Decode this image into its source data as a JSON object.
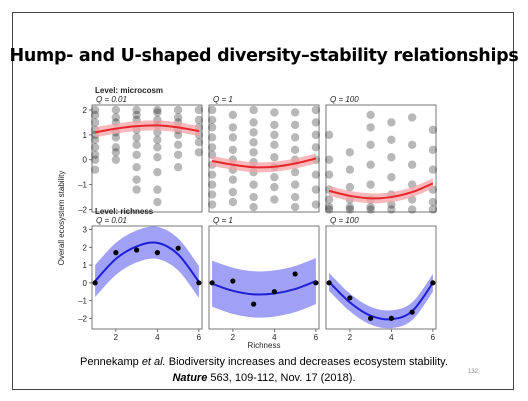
{
  "slide": {
    "title": "Hump- and U-shaped diversity–stability relationships",
    "citation_line1_pre": "Pennekamp ",
    "citation_line1_em": "et al.",
    "citation_line1_post": " Biodiversity increases and decreases ecosystem stability.",
    "citation_line2_journal": "Nature",
    "citation_line2_post": " 563, 109-112, Nov. 17 (2018).",
    "slide_number": "132"
  },
  "chart_data": {
    "type": "scatter",
    "ylabel": "Overall ecosystem stability",
    "xlabel": "Richness",
    "x_ticks": [
      "2",
      "4",
      "6"
    ],
    "colors": {
      "microcosm_fit": "#e8262b",
      "microcosm_band": "#f4a3a5",
      "richness_fit": "#1f1fd8",
      "richness_band": "#8f8ff2",
      "points": "#000000",
      "panel_bg": "#ffffff"
    },
    "rows": [
      {
        "level_label": "Level: microcosm",
        "y_ticks": [
          "2",
          "1",
          "0",
          "–1",
          "–2"
        ],
        "ylim": [
          -2.1,
          2.2
        ],
        "panels": [
          {
            "label": "Q = 0.01",
            "fit": [
              [
                1,
                1.1
              ],
              [
                2,
                1.25
              ],
              [
                3,
                1.35
              ],
              [
                4,
                1.38
              ],
              [
                5,
                1.3
              ],
              [
                6,
                1.15
              ]
            ],
            "band": 0.2,
            "points": [
              [
                1,
                2
              ],
              [
                1,
                1.8
              ],
              [
                1,
                1.5
              ],
              [
                1,
                1.2
              ],
              [
                1,
                1
              ],
              [
                1,
                0.8
              ],
              [
                1,
                0.5
              ],
              [
                1,
                0.2
              ],
              [
                1,
                0
              ],
              [
                1,
                -0.4
              ],
              [
                2,
                2
              ],
              [
                2,
                1.7
              ],
              [
                2,
                1.5
              ],
              [
                2,
                1.1
              ],
              [
                2,
                0.9
              ],
              [
                2,
                0.5
              ],
              [
                2,
                0.3
              ],
              [
                2,
                0
              ],
              [
                3,
                2
              ],
              [
                3,
                1.8
              ],
              [
                3,
                1.6
              ],
              [
                3,
                1.2
              ],
              [
                3,
                0.9
              ],
              [
                3,
                0.6
              ],
              [
                3,
                0.2
              ],
              [
                3,
                -0.3
              ],
              [
                3,
                -0.8
              ],
              [
                3,
                -1.2
              ],
              [
                4,
                2
              ],
              [
                4,
                1.9
              ],
              [
                4,
                1.6
              ],
              [
                4,
                1.4
              ],
              [
                4,
                1.1
              ],
              [
                4,
                0.8
              ],
              [
                4,
                0.5
              ],
              [
                4,
                0.1
              ],
              [
                4,
                -0.5
              ],
              [
                4,
                -1.2
              ],
              [
                4,
                -1.7
              ],
              [
                5,
                2
              ],
              [
                5,
                1.7
              ],
              [
                5,
                1.5
              ],
              [
                5,
                1.2
              ],
              [
                5,
                1
              ],
              [
                5,
                0.6
              ],
              [
                5,
                0.2
              ],
              [
                5,
                -0.3
              ],
              [
                6,
                2
              ],
              [
                6,
                1.6
              ],
              [
                6,
                1.3
              ],
              [
                6,
                1
              ],
              [
                6,
                0.7
              ],
              [
                6,
                0.3
              ]
            ]
          },
          {
            "label": "Q = 1",
            "fit": [
              [
                1,
                -0.05
              ],
              [
                2,
                -0.2
              ],
              [
                3,
                -0.3
              ],
              [
                4,
                -0.28
              ],
              [
                5,
                -0.15
              ],
              [
                6,
                0.05
              ]
            ],
            "band": 0.2,
            "points": [
              [
                1,
                2
              ],
              [
                1,
                1.6
              ],
              [
                1,
                1.3
              ],
              [
                1,
                0.9
              ],
              [
                1,
                0.5
              ],
              [
                1,
                0.2
              ],
              [
                1,
                -0.2
              ],
              [
                1,
                -0.6
              ],
              [
                1,
                -1
              ],
              [
                1,
                -1.4
              ],
              [
                1,
                -1.8
              ],
              [
                2,
                1.8
              ],
              [
                2,
                1.3
              ],
              [
                2,
                0.9
              ],
              [
                2,
                0.4
              ],
              [
                2,
                0
              ],
              [
                2,
                -0.4
              ],
              [
                2,
                -0.8
              ],
              [
                2,
                -1.3
              ],
              [
                2,
                -1.7
              ],
              [
                3,
                2
              ],
              [
                3,
                1.5
              ],
              [
                3,
                1.1
              ],
              [
                3,
                0.7
              ],
              [
                3,
                0.3
              ],
              [
                3,
                -0.1
              ],
              [
                3,
                -0.5
              ],
              [
                3,
                -1
              ],
              [
                3,
                -1.5
              ],
              [
                3,
                -1.9
              ],
              [
                4,
                1.9
              ],
              [
                4,
                1.4
              ],
              [
                4,
                1
              ],
              [
                4,
                0.6
              ],
              [
                4,
                0.1
              ],
              [
                4,
                -0.3
              ],
              [
                4,
                -0.7
              ],
              [
                4,
                -1.1
              ],
              [
                4,
                -1.6
              ],
              [
                5,
                1.9
              ],
              [
                5,
                1.4
              ],
              [
                5,
                0.9
              ],
              [
                5,
                0.4
              ],
              [
                5,
                0
              ],
              [
                5,
                -0.5
              ],
              [
                5,
                -1
              ],
              [
                5,
                -1.5
              ],
              [
                5,
                -1.9
              ],
              [
                6,
                2
              ],
              [
                6,
                1.5
              ],
              [
                6,
                1
              ],
              [
                6,
                0.5
              ],
              [
                6,
                0
              ],
              [
                6,
                -0.6
              ],
              [
                6,
                -1.2
              ],
              [
                6,
                -1.8
              ]
            ]
          },
          {
            "label": "Q = 100",
            "fit": [
              [
                1,
                -1.25
              ],
              [
                2,
                -1.45
              ],
              [
                3,
                -1.55
              ],
              [
                4,
                -1.5
              ],
              [
                5,
                -1.3
              ],
              [
                6,
                -0.95
              ]
            ],
            "band": 0.2,
            "points": [
              [
                1,
                1
              ],
              [
                1,
                0
              ],
              [
                1,
                -0.6
              ],
              [
                1,
                -1.2
              ],
              [
                1,
                -1.6
              ],
              [
                1,
                -1.9
              ],
              [
                1,
                -2
              ],
              [
                2,
                0.3
              ],
              [
                2,
                -0.4
              ],
              [
                2,
                -1.1
              ],
              [
                2,
                -1.6
              ],
              [
                2,
                -1.9
              ],
              [
                2,
                -2
              ],
              [
                3,
                1.8
              ],
              [
                3,
                1.3
              ],
              [
                3,
                0.6
              ],
              [
                3,
                -0.2
              ],
              [
                3,
                -1
              ],
              [
                3,
                -1.6
              ],
              [
                3,
                -1.9
              ],
              [
                3,
                -2
              ],
              [
                4,
                1.5
              ],
              [
                4,
                0.8
              ],
              [
                4,
                0.1
              ],
              [
                4,
                -0.7
              ],
              [
                4,
                -1.4
              ],
              [
                4,
                -1.8
              ],
              [
                4,
                -2
              ],
              [
                5,
                1.7
              ],
              [
                5,
                0.6
              ],
              [
                5,
                -0.2
              ],
              [
                5,
                -1
              ],
              [
                5,
                -1.6
              ],
              [
                5,
                -2
              ],
              [
                6,
                1.2
              ],
              [
                6,
                0.4
              ],
              [
                6,
                -0.4
              ],
              [
                6,
                -1.2
              ],
              [
                6,
                -1.7
              ],
              [
                6,
                -2
              ]
            ]
          }
        ]
      },
      {
        "level_label": "Level: richness",
        "y_ticks": [
          "3",
          "2",
          "1",
          "0",
          "–1",
          "–2"
        ],
        "ylim": [
          -2.6,
          3.2
        ],
        "panels": [
          {
            "label": "Q = 0.01",
            "fit": [
              [
                1,
                0.1
              ],
              [
                2,
                1.35
              ],
              [
                3,
                2.05
              ],
              [
                4,
                2.25
              ],
              [
                5,
                1.6
              ],
              [
                6,
                0.05
              ]
            ],
            "band": 0.9,
            "points": [
              [
                1,
                0
              ],
              [
                2,
                1.7
              ],
              [
                3,
                1.85
              ],
              [
                4,
                1.7
              ],
              [
                5,
                1.95
              ],
              [
                6,
                0
              ]
            ]
          },
          {
            "label": "Q = 1",
            "fit": [
              [
                1,
                -0.05
              ],
              [
                2,
                -0.45
              ],
              [
                3,
                -0.65
              ],
              [
                4,
                -0.6
              ],
              [
                5,
                -0.35
              ],
              [
                6,
                0.1
              ]
            ],
            "band": 1.3,
            "points": [
              [
                1,
                0
              ],
              [
                2,
                0.1
              ],
              [
                3,
                -1.2
              ],
              [
                4,
                -0.5
              ],
              [
                5,
                0.5
              ],
              [
                6,
                0
              ]
            ]
          },
          {
            "label": "Q = 100",
            "fit": [
              [
                1,
                0.05
              ],
              [
                2,
                -1.1
              ],
              [
                3,
                -1.85
              ],
              [
                4,
                -2.05
              ],
              [
                5,
                -1.6
              ],
              [
                6,
                0
              ]
            ],
            "band": 0.5,
            "points": [
              [
                1,
                0
              ],
              [
                2,
                -0.85
              ],
              [
                3,
                -2
              ],
              [
                4,
                -2
              ],
              [
                5,
                -1.65
              ],
              [
                6,
                0
              ]
            ]
          }
        ]
      }
    ]
  }
}
